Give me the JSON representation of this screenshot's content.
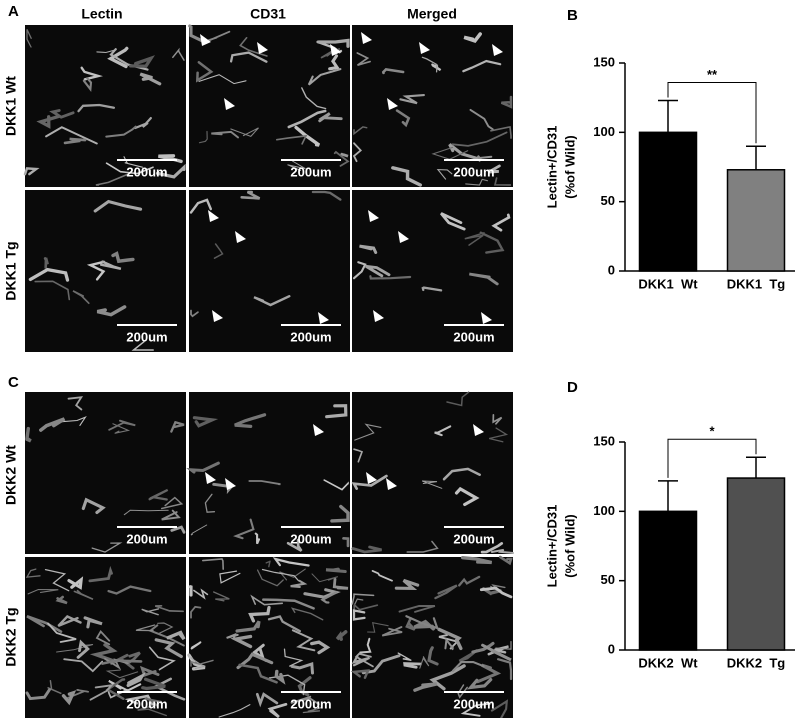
{
  "panels": {
    "a": "A",
    "b": "B",
    "c": "C",
    "d": "D"
  },
  "column_headers": [
    "Lectin",
    "CD31",
    "Merged"
  ],
  "row_labels": [
    "DKK1 Wt",
    "DKK1 Tg",
    "DKK2 Wt",
    "DKK2 Tg"
  ],
  "scale_bar": "200um",
  "chart_data": [
    {
      "type": "bar",
      "y_label": [
        "Lectin+/CD31",
        "(%of Wild)"
      ],
      "categories": [
        "DKK1  Wt",
        "DKK1  Tg"
      ],
      "values": [
        100,
        73
      ],
      "errors": [
        23,
        17
      ],
      "colors": [
        "#000000",
        "#808080"
      ],
      "ylim": [
        0,
        150
      ],
      "yticks": [
        0,
        50,
        100,
        150
      ],
      "significance": "**"
    },
    {
      "type": "bar",
      "y_label": [
        "Lectin+/CD31",
        "(%of Wild)"
      ],
      "categories": [
        "DKK2  Wt",
        "DKK2  Tg"
      ],
      "values": [
        100,
        124
      ],
      "errors": [
        22,
        15
      ],
      "colors": [
        "#000000",
        "#505050"
      ],
      "ylim": [
        0,
        150
      ],
      "yticks": [
        0,
        50,
        100,
        150
      ],
      "significance": "*"
    }
  ]
}
